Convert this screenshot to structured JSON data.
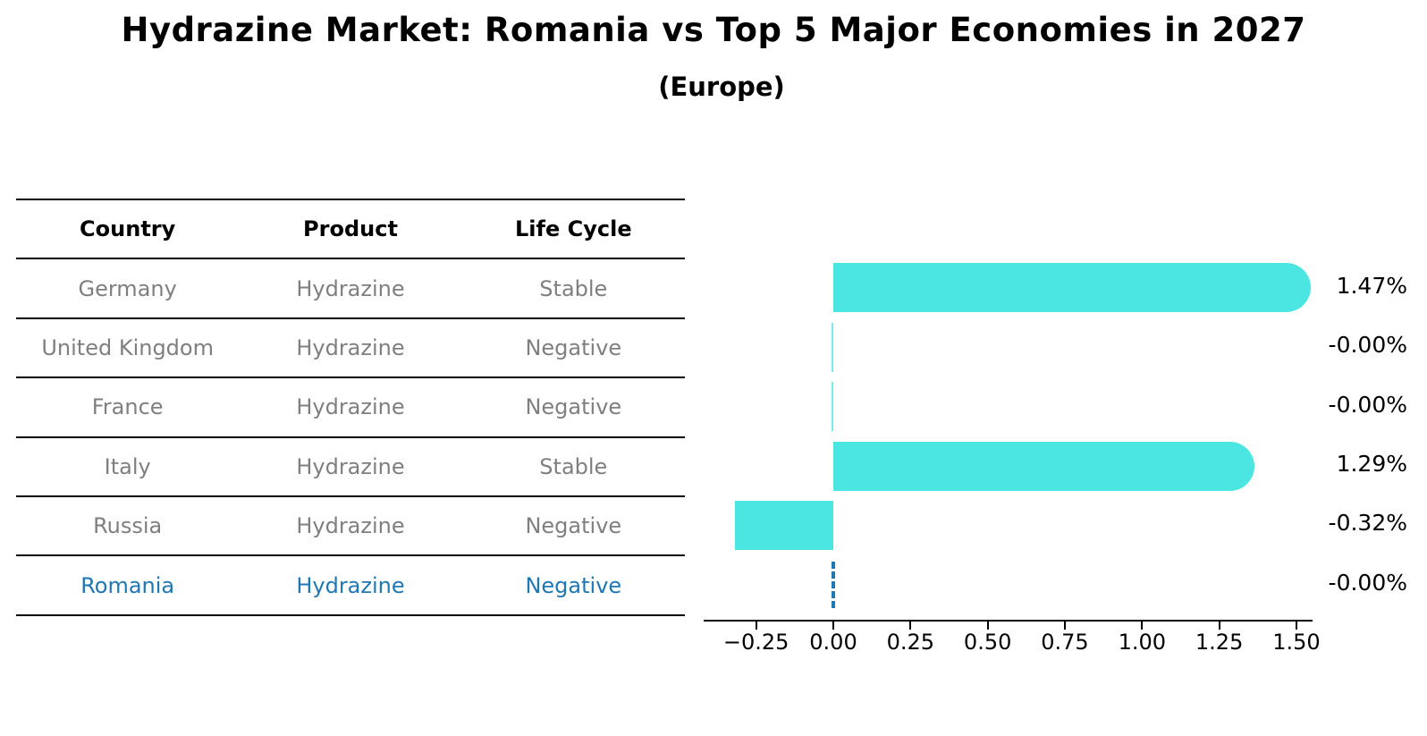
{
  "title": "Hydrazine Market: Romania vs Top 5 Major Economies in 2027",
  "subtitle": "(Europe)",
  "table": {
    "headers": [
      "Country",
      "Product",
      "Life Cycle"
    ],
    "rows": [
      {
        "country": "Germany",
        "product": "Hydrazine",
        "life_cycle": "Stable",
        "highlight": false
      },
      {
        "country": "United Kingdom",
        "product": "Hydrazine",
        "life_cycle": "Negative",
        "highlight": false
      },
      {
        "country": "France",
        "product": "Hydrazine",
        "life_cycle": "Negative",
        "highlight": false
      },
      {
        "country": "Italy",
        "product": "Hydrazine",
        "life_cycle": "Stable",
        "highlight": false
      },
      {
        "country": "Russia",
        "product": "Hydrazine",
        "life_cycle": "Negative",
        "highlight": false
      },
      {
        "country": "Romania",
        "product": "Hydrazine",
        "life_cycle": "Negative",
        "highlight": true
      }
    ]
  },
  "chart_data": {
    "type": "bar",
    "orientation": "horizontal",
    "categories": [
      "Germany",
      "United Kingdom",
      "France",
      "Italy",
      "Russia",
      "Romania"
    ],
    "values": [
      1.47,
      -0.0,
      -0.0,
      1.29,
      -0.32,
      -0.0
    ],
    "value_labels": [
      "1.47%",
      "-0.00%",
      "-0.00%",
      "1.29%",
      "-0.32%",
      "-0.00%"
    ],
    "x_tick_values": [
      -0.25,
      0.0,
      0.25,
      0.5,
      0.75,
      1.0,
      1.25,
      1.5
    ],
    "x_tick_labels": [
      "−0.25",
      "0.00",
      "0.25",
      "0.50",
      "0.75",
      "1.00",
      "1.25",
      "1.50"
    ],
    "xlim": [
      -0.42,
      1.555
    ],
    "grid": false,
    "legend": "none",
    "title": "Hydrazine Market: Romania vs Top 5 Major Economies in 2027",
    "xlabel": "",
    "ylabel": "",
    "highlight_category": "Romania",
    "highlight_style": "dashed-zero-line"
  },
  "colors": {
    "bar": "#4BE6E1",
    "highlight": "#1f77b4",
    "table_text": "#7f7f7f",
    "header_text": "#000000",
    "axis": "#000000"
  }
}
